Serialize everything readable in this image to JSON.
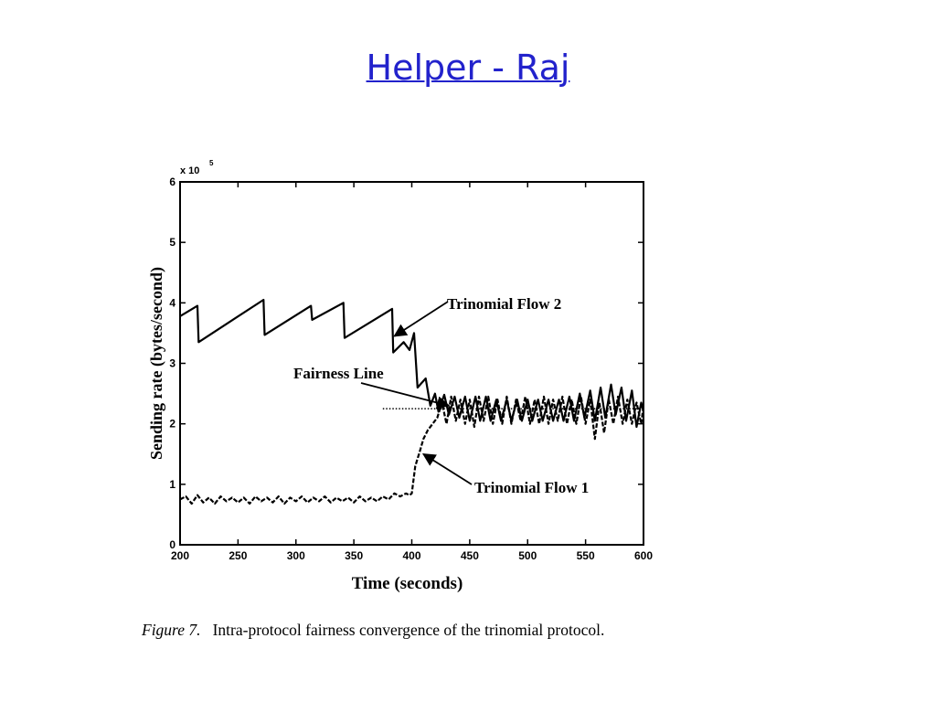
{
  "slide": {
    "title": "Helper - Raj"
  },
  "chart_data": {
    "type": "line",
    "xlabel": "Time (seconds)",
    "ylabel": "Sending rate (bytes/second)",
    "y_multiplier": "x 10",
    "y_exponent": "5",
    "xlim": [
      200,
      600
    ],
    "ylim": [
      0,
      6
    ],
    "xticks": [
      200,
      250,
      300,
      350,
      400,
      450,
      500,
      550,
      600
    ],
    "yticks": [
      0,
      1,
      2,
      3,
      4,
      5,
      6
    ],
    "grid": false,
    "series": [
      {
        "name": "Trinomial Flow 2",
        "style": "solid",
        "points": [
          [
            200,
            3.78
          ],
          [
            215,
            3.95
          ],
          [
            216,
            3.35
          ],
          [
            272,
            4.05
          ],
          [
            273,
            3.47
          ],
          [
            313,
            3.95
          ],
          [
            314,
            3.72
          ],
          [
            341,
            4.0
          ],
          [
            342,
            3.42
          ],
          [
            383,
            3.9
          ],
          [
            384,
            3.18
          ],
          [
            393,
            3.35
          ],
          [
            398,
            3.22
          ],
          [
            402,
            3.5
          ],
          [
            405,
            2.6
          ],
          [
            412,
            2.75
          ],
          [
            416,
            2.3
          ],
          [
            420,
            2.5
          ],
          [
            423,
            2.2
          ],
          [
            428,
            2.48
          ],
          [
            432,
            2.15
          ],
          [
            437,
            2.45
          ],
          [
            441,
            2.1
          ],
          [
            446,
            2.45
          ],
          [
            450,
            2.05
          ],
          [
            455,
            2.45
          ],
          [
            459,
            2.05
          ],
          [
            464,
            2.45
          ],
          [
            468,
            2.05
          ],
          [
            473,
            2.4
          ],
          [
            477,
            2.05
          ],
          [
            482,
            2.4
          ],
          [
            486,
            2.05
          ],
          [
            491,
            2.4
          ],
          [
            495,
            2.05
          ],
          [
            500,
            2.4
          ],
          [
            504,
            2.05
          ],
          [
            509,
            2.4
          ],
          [
            513,
            2.05
          ],
          [
            518,
            2.4
          ],
          [
            522,
            2.05
          ],
          [
            527,
            2.4
          ],
          [
            531,
            2.05
          ],
          [
            536,
            2.45
          ],
          [
            540,
            2.05
          ],
          [
            545,
            2.5
          ],
          [
            549,
            2.1
          ],
          [
            554,
            2.55
          ],
          [
            558,
            2.05
          ],
          [
            563,
            2.6
          ],
          [
            567,
            2.1
          ],
          [
            572,
            2.65
          ],
          [
            576,
            2.15
          ],
          [
            581,
            2.6
          ],
          [
            585,
            2.05
          ],
          [
            590,
            2.55
          ],
          [
            594,
            1.95
          ],
          [
            598,
            2.35
          ],
          [
            600,
            2.2
          ]
        ]
      },
      {
        "name": "Trinomial Flow 1",
        "style": "dashed",
        "points": [
          [
            200,
            0.75
          ],
          [
            205,
            0.8
          ],
          [
            210,
            0.68
          ],
          [
            215,
            0.82
          ],
          [
            220,
            0.7
          ],
          [
            225,
            0.78
          ],
          [
            230,
            0.68
          ],
          [
            235,
            0.8
          ],
          [
            240,
            0.72
          ],
          [
            245,
            0.78
          ],
          [
            250,
            0.7
          ],
          [
            255,
            0.78
          ],
          [
            260,
            0.68
          ],
          [
            265,
            0.8
          ],
          [
            270,
            0.72
          ],
          [
            275,
            0.78
          ],
          [
            280,
            0.7
          ],
          [
            285,
            0.8
          ],
          [
            290,
            0.68
          ],
          [
            295,
            0.78
          ],
          [
            300,
            0.72
          ],
          [
            305,
            0.8
          ],
          [
            310,
            0.7
          ],
          [
            315,
            0.78
          ],
          [
            320,
            0.72
          ],
          [
            325,
            0.8
          ],
          [
            330,
            0.7
          ],
          [
            335,
            0.78
          ],
          [
            340,
            0.72
          ],
          [
            345,
            0.78
          ],
          [
            350,
            0.7
          ],
          [
            355,
            0.8
          ],
          [
            360,
            0.72
          ],
          [
            365,
            0.78
          ],
          [
            370,
            0.72
          ],
          [
            375,
            0.8
          ],
          [
            380,
            0.75
          ],
          [
            385,
            0.85
          ],
          [
            390,
            0.8
          ],
          [
            395,
            0.85
          ],
          [
            398,
            0.82
          ],
          [
            400,
            0.85
          ],
          [
            403,
            1.3
          ],
          [
            407,
            1.55
          ],
          [
            410,
            1.75
          ],
          [
            414,
            1.9
          ],
          [
            418,
            2.0
          ],
          [
            422,
            2.1
          ],
          [
            426,
            2.35
          ],
          [
            430,
            2.0
          ],
          [
            434,
            2.45
          ],
          [
            438,
            2.05
          ],
          [
            442,
            2.4
          ],
          [
            446,
            2.0
          ],
          [
            450,
            2.4
          ],
          [
            454,
            1.95
          ],
          [
            458,
            2.45
          ],
          [
            462,
            2.05
          ],
          [
            466,
            2.45
          ],
          [
            470,
            2.0
          ],
          [
            474,
            2.4
          ],
          [
            478,
            2.0
          ],
          [
            482,
            2.45
          ],
          [
            486,
            2.0
          ],
          [
            490,
            2.4
          ],
          [
            494,
            2.05
          ],
          [
            498,
            2.45
          ],
          [
            502,
            2.0
          ],
          [
            506,
            2.4
          ],
          [
            510,
            2.0
          ],
          [
            514,
            2.45
          ],
          [
            518,
            2.0
          ],
          [
            522,
            2.4
          ],
          [
            526,
            2.05
          ],
          [
            530,
            2.45
          ],
          [
            534,
            2.0
          ],
          [
            538,
            2.4
          ],
          [
            542,
            2.0
          ],
          [
            546,
            2.45
          ],
          [
            550,
            2.0
          ],
          [
            554,
            2.4
          ],
          [
            558,
            1.75
          ],
          [
            562,
            2.35
          ],
          [
            566,
            1.85
          ],
          [
            570,
            2.4
          ],
          [
            574,
            2.0
          ],
          [
            578,
            2.45
          ],
          [
            582,
            2.0
          ],
          [
            586,
            2.4
          ],
          [
            590,
            2.0
          ],
          [
            594,
            2.35
          ],
          [
            598,
            2.0
          ],
          [
            600,
            2.3
          ]
        ]
      }
    ],
    "reference_lines": [
      {
        "name": "Fairness Line",
        "style": "dotted",
        "y": 2.25,
        "x_from": 375,
        "x_to": 600
      }
    ],
    "annotations": [
      {
        "text": "Trinomial Flow 2",
        "arrow_to": [
          385,
          3.45
        ]
      },
      {
        "text": "Fairness Line",
        "arrow_to": [
          432,
          2.3
        ]
      },
      {
        "text": "Trinomial Flow 1",
        "arrow_to": [
          410,
          1.5
        ]
      }
    ]
  },
  "caption": {
    "figure_label": "Figure 7.",
    "text": "Intra-protocol fairness convergence of the trinomial protocol."
  }
}
